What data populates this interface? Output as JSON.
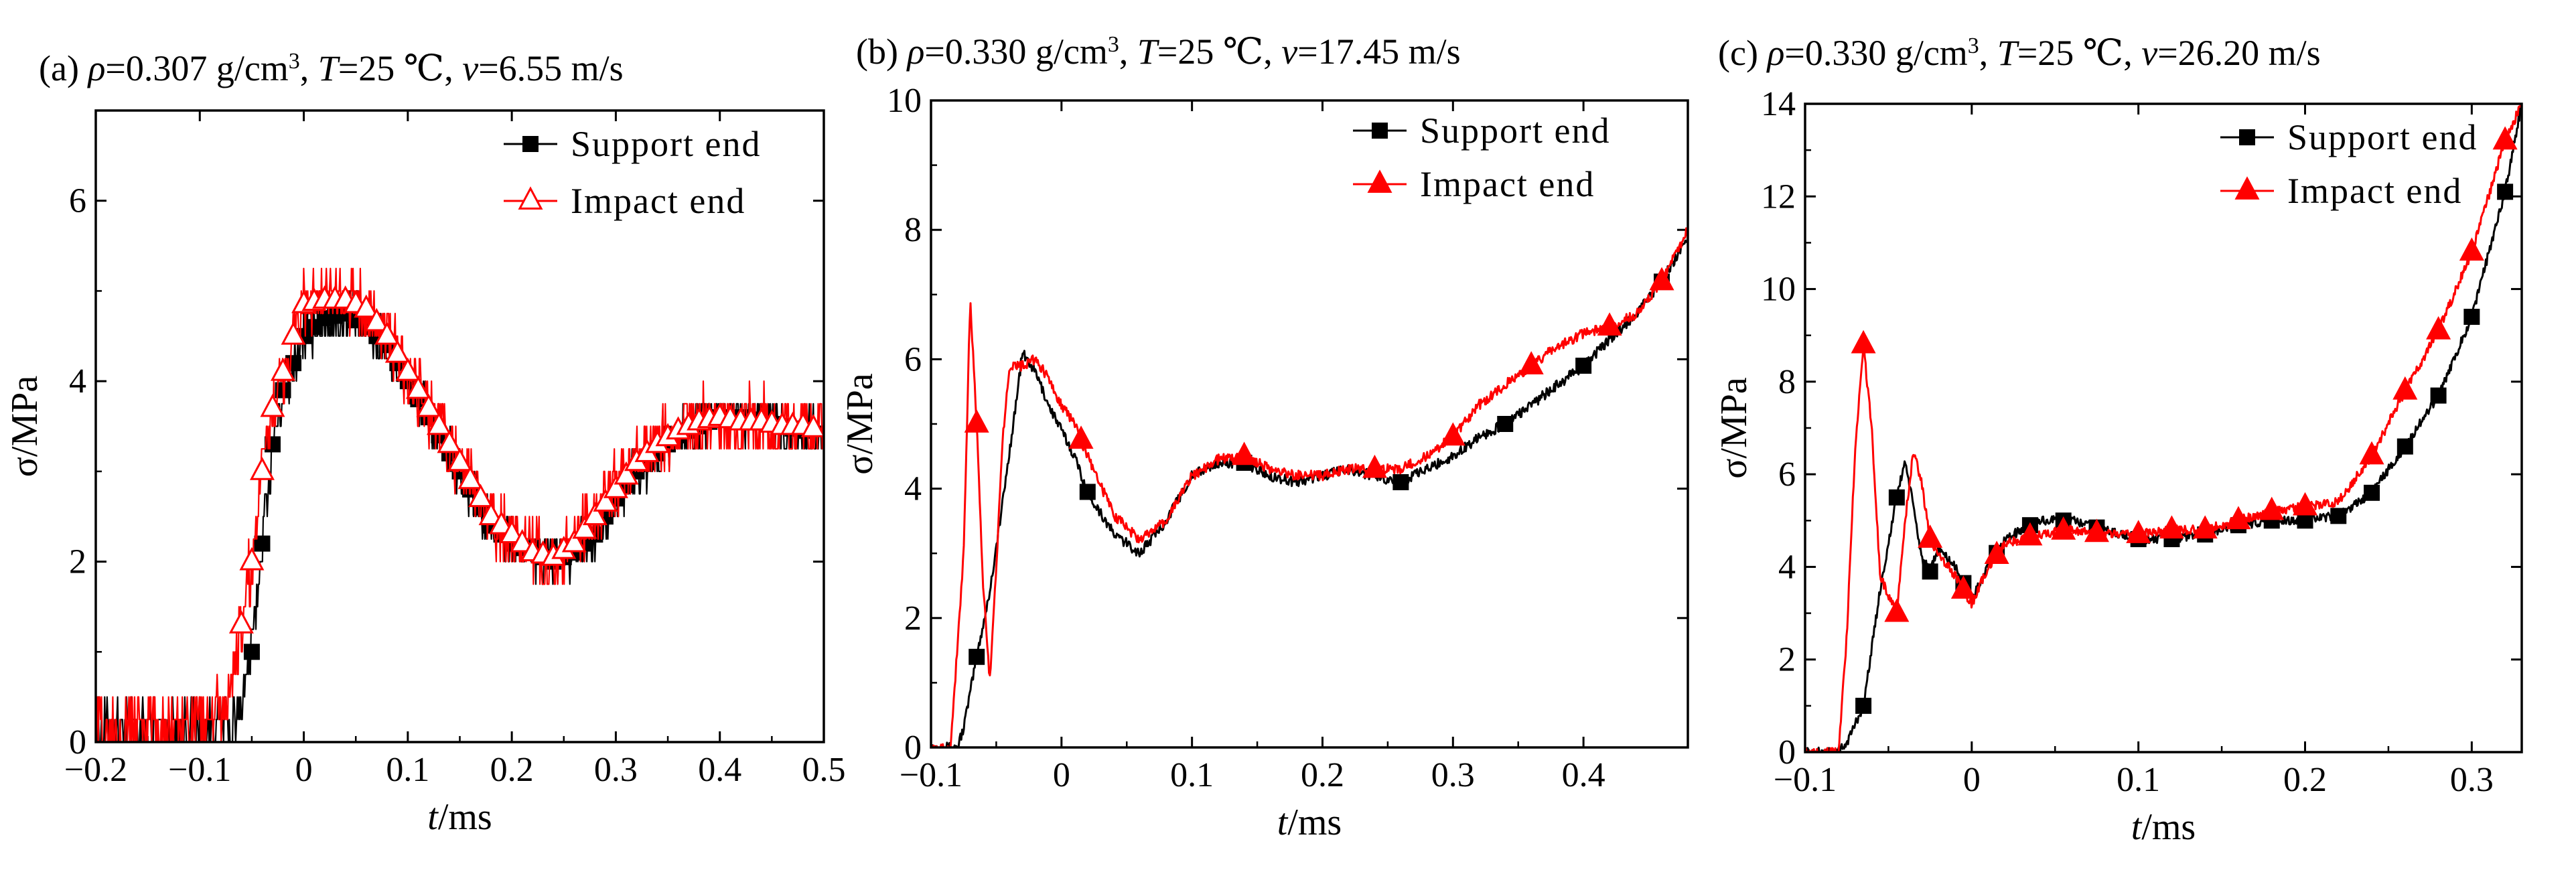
{
  "figure": {
    "colors": {
      "support": "#000000",
      "impact": "#ff0000",
      "frame": "#000000",
      "background": "#ffffff"
    },
    "icons": {
      "support": "filled-square-marker",
      "impact_a": "open-triangle-marker",
      "impact_bc": "filled-triangle-marker"
    }
  },
  "chart_data": [
    {
      "type": "line",
      "panel": "a",
      "title": "(a) ρ=0.307 g/cm³, T=25 ℃, v=6.55 m/s",
      "title_parts": [
        "(a) ",
        "ρ",
        "=0.307 g/cm",
        "3",
        ", ",
        "T",
        "=25 ℃, ",
        "v",
        "=6.55 m/s"
      ],
      "xlabel": "t/ms",
      "ylabel": "σ/MPa",
      "xlim": [
        -0.2,
        0.5
      ],
      "ylim": [
        0,
        7
      ],
      "xticks": [
        -0.2,
        -0.1,
        0,
        0.1,
        0.2,
        0.3,
        0.4,
        0.5
      ],
      "xtick_labels": [
        "−0.2",
        "−0.1",
        "0",
        "0.1",
        "0.2",
        "0.3",
        "0.4",
        "0.5"
      ],
      "yticks": [
        0,
        2,
        4,
        6
      ],
      "ytick_labels": [
        "0",
        "2",
        "4",
        "6"
      ],
      "legend": "top-right",
      "noise": 0.35,
      "series": [
        {
          "name": "Support end",
          "color": "#000000",
          "marker": "square",
          "filled": true,
          "stack": 0,
          "x": [
            -0.2,
            -0.1,
            -0.065,
            -0.05,
            -0.04,
            -0.03,
            -0.02,
            -0.01,
            0,
            0.02,
            0.04,
            0.06,
            0.08,
            0.1,
            0.12,
            0.14,
            0.16,
            0.18,
            0.2,
            0.22,
            0.24,
            0.26,
            0.28,
            0.3,
            0.32,
            0.34,
            0.36,
            0.38,
            0.4,
            0.42,
            0.44,
            0.46,
            0.48,
            0.5
          ],
          "y": [
            0.15,
            0.2,
            0.2,
            1.0,
            2.2,
            3.3,
            3.9,
            4.2,
            4.5,
            4.7,
            4.75,
            4.6,
            4.4,
            4.0,
            3.6,
            3.2,
            2.8,
            2.4,
            2.2,
            2.1,
            2.0,
            2.1,
            2.3,
            2.7,
            3.0,
            3.2,
            3.4,
            3.5,
            3.6,
            3.6,
            3.55,
            3.5,
            3.45,
            3.4
          ],
          "marker_x": [
            -0.05,
            -0.04,
            -0.03,
            -0.02,
            -0.01,
            0,
            0.01,
            0.02,
            0.03,
            0.04,
            0.05,
            0.06,
            0.07,
            0.08,
            0.09,
            0.1,
            0.11,
            0.12,
            0.13,
            0.14,
            0.15,
            0.16,
            0.17,
            0.18,
            0.19,
            0.2,
            0.21,
            0.22,
            0.23,
            0.24,
            0.25,
            0.26,
            0.27,
            0.28,
            0.29,
            0.3,
            0.31,
            0.32,
            0.33,
            0.34,
            0.35,
            0.36,
            0.37,
            0.38,
            0.39,
            0.4,
            0.41,
            0.42,
            0.43,
            0.44,
            0.45,
            0.46,
            0.47,
            0.48
          ]
        },
        {
          "name": "Impact end",
          "color": "#ff0000",
          "marker": "triangle",
          "filled": false,
          "stack": 1,
          "x": [
            -0.2,
            -0.1,
            -0.075,
            -0.06,
            -0.05,
            -0.04,
            -0.03,
            -0.02,
            -0.01,
            0,
            0.02,
            0.04,
            0.06,
            0.08,
            0.1,
            0.12,
            0.14,
            0.16,
            0.18,
            0.2,
            0.22,
            0.24,
            0.26,
            0.28,
            0.3,
            0.32,
            0.34,
            0.36,
            0.38,
            0.4,
            0.42,
            0.44,
            0.46,
            0.48,
            0.5
          ],
          "y": [
            0.2,
            0.25,
            0.3,
            1.3,
            2.0,
            3.0,
            3.7,
            4.1,
            4.5,
            4.85,
            4.9,
            4.9,
            4.8,
            4.5,
            4.1,
            3.7,
            3.3,
            2.9,
            2.5,
            2.3,
            2.1,
            2.05,
            2.2,
            2.5,
            2.8,
            3.1,
            3.3,
            3.45,
            3.55,
            3.6,
            3.55,
            3.55,
            3.5,
            3.5,
            3.45
          ],
          "marker_x": [
            -0.06,
            -0.05,
            -0.04,
            -0.03,
            -0.02,
            -0.01,
            0,
            0.01,
            0.02,
            0.03,
            0.04,
            0.05,
            0.06,
            0.07,
            0.08,
            0.09,
            0.1,
            0.11,
            0.12,
            0.13,
            0.14,
            0.15,
            0.16,
            0.17,
            0.18,
            0.19,
            0.2,
            0.21,
            0.22,
            0.23,
            0.24,
            0.25,
            0.26,
            0.27,
            0.28,
            0.29,
            0.3,
            0.31,
            0.32,
            0.33,
            0.34,
            0.35,
            0.36,
            0.37,
            0.38,
            0.39,
            0.4,
            0.41,
            0.42,
            0.43,
            0.44,
            0.45,
            0.46,
            0.47,
            0.48,
            0.49
          ]
        }
      ]
    },
    {
      "type": "line",
      "panel": "b",
      "title": "(b) ρ=0.330 g/cm³,   T=25 ℃,  v=17.45 m/s",
      "title_parts": [
        "(b) ",
        "ρ",
        "=0.330 g/cm",
        "3",
        ",   ",
        "T",
        "=25 ℃,  ",
        "v",
        "=17.45 m/s"
      ],
      "xlabel": "t/ms",
      "ylabel": "σ/MPa",
      "xlim": [
        -0.1,
        0.48
      ],
      "ylim": [
        0,
        10
      ],
      "xticks": [
        -0.1,
        0,
        0.1,
        0.2,
        0.3,
        0.4
      ],
      "xtick_labels": [
        "−0.1",
        "0",
        "0.1",
        "0.2",
        "0.3",
        "0.4"
      ],
      "yticks": [
        0,
        2,
        4,
        6,
        8,
        10
      ],
      "ytick_labels": [
        "0",
        "2",
        "4",
        "6",
        "8",
        "10"
      ],
      "legend": "top-right",
      "noise": 0.08,
      "series": [
        {
          "name": "Support end",
          "color": "#000000",
          "marker": "square",
          "filled": true,
          "stack": 0,
          "x": [
            -0.1,
            -0.08,
            -0.075,
            -0.065,
            -0.055,
            -0.045,
            -0.035,
            -0.03,
            -0.02,
            -0.01,
            0,
            0.01,
            0.02,
            0.04,
            0.06,
            0.08,
            0.1,
            0.12,
            0.14,
            0.16,
            0.18,
            0.2,
            0.22,
            0.24,
            0.26,
            0.28,
            0.3,
            0.32,
            0.34,
            0.36,
            0.38,
            0.4,
            0.42,
            0.44,
            0.46,
            0.48
          ],
          "y": [
            0,
            0,
            0.3,
            1.4,
            2.4,
            3.8,
            5.3,
            6.1,
            5.8,
            5.3,
            4.9,
            4.5,
            3.95,
            3.3,
            3.0,
            3.5,
            4.2,
            4.4,
            4.4,
            4.2,
            4.1,
            4.2,
            4.3,
            4.2,
            4.1,
            4.3,
            4.5,
            4.8,
            5.0,
            5.3,
            5.6,
            5.9,
            6.3,
            6.7,
            7.2,
            7.9
          ],
          "marker_x": [
            -0.065,
            0.02,
            0.14,
            0.26,
            0.34,
            0.4,
            0.46
          ]
        },
        {
          "name": "Impact end",
          "color": "#ff0000",
          "marker": "triangle",
          "filled": true,
          "stack": 0,
          "x": [
            -0.1,
            -0.085,
            -0.075,
            -0.07,
            -0.065,
            -0.06,
            -0.055,
            -0.05,
            -0.045,
            -0.04,
            -0.03,
            -0.02,
            -0.01,
            0,
            0.01,
            0.02,
            0.04,
            0.06,
            0.08,
            0.1,
            0.12,
            0.14,
            0.16,
            0.18,
            0.2,
            0.22,
            0.24,
            0.26,
            0.28,
            0.3,
            0.32,
            0.34,
            0.36,
            0.38,
            0.4,
            0.42,
            0.44,
            0.46,
            0.48
          ],
          "y": [
            0,
            0,
            3.0,
            6.9,
            5.0,
            2.5,
            1.0,
            2.8,
            4.8,
            5.9,
            5.9,
            6.0,
            5.7,
            5.3,
            5.0,
            4.5,
            3.6,
            3.2,
            3.5,
            4.2,
            4.45,
            4.5,
            4.3,
            4.2,
            4.2,
            4.3,
            4.3,
            4.3,
            4.5,
            4.8,
            5.3,
            5.6,
            5.9,
            6.2,
            6.4,
            6.5,
            6.7,
            7.2,
            8.0
          ],
          "marker_x": [
            -0.065,
            0.015,
            0.14,
            0.24,
            0.3,
            0.36,
            0.42,
            0.46
          ]
        }
      ]
    },
    {
      "type": "line",
      "panel": "c",
      "title": "(c) ρ=0.330 g/cm³,   T=25 ℃,  v=26.20 m/s",
      "title_parts": [
        "(c) ",
        "ρ",
        "=0.330 g/cm",
        "3",
        ",   ",
        "T",
        "=25 ℃,  ",
        "v",
        "=26.20 m/s"
      ],
      "xlabel": "t/ms",
      "ylabel": "σ/MPa",
      "xlim": [
        -0.1,
        0.33
      ],
      "ylim": [
        0,
        14
      ],
      "xticks": [
        -0.1,
        0,
        0.1,
        0.2,
        0.3
      ],
      "xtick_labels": [
        "−0.1",
        "0",
        "0.1",
        "0.2",
        "0.3"
      ],
      "yticks": [
        0,
        2,
        4,
        6,
        8,
        10,
        12,
        14
      ],
      "ytick_labels": [
        "0",
        "2",
        "4",
        "6",
        "8",
        "10",
        "12",
        "14"
      ],
      "legend": "top-right",
      "noise": 0.1,
      "series": [
        {
          "name": "Support end",
          "color": "#000000",
          "marker": "square",
          "filled": true,
          "stack": 0,
          "x": [
            -0.1,
            -0.08,
            -0.075,
            -0.065,
            -0.055,
            -0.045,
            -0.04,
            -0.035,
            -0.03,
            -0.025,
            -0.02,
            -0.01,
            0,
            0.01,
            0.02,
            0.04,
            0.06,
            0.08,
            0.1,
            0.12,
            0.14,
            0.16,
            0.18,
            0.2,
            0.22,
            0.24,
            0.26,
            0.28,
            0.3,
            0.32,
            0.33
          ],
          "y": [
            0,
            0,
            0.2,
            1.0,
            3.5,
            5.5,
            6.3,
            5.3,
            4.2,
            3.9,
            4.4,
            4.0,
            3.3,
            4.0,
            4.6,
            5.0,
            5.0,
            4.8,
            4.6,
            4.6,
            4.7,
            4.9,
            5.0,
            5.0,
            5.1,
            5.6,
            6.6,
            7.7,
            9.4,
            12.1,
            14.0
          ],
          "marker_x": [
            -0.065,
            -0.045,
            -0.025,
            -0.005,
            0.015,
            0.035,
            0.055,
            0.075,
            0.1,
            0.12,
            0.14,
            0.16,
            0.18,
            0.2,
            0.22,
            0.24,
            0.26,
            0.28,
            0.3,
            0.32
          ]
        },
        {
          "name": "Impact end",
          "color": "#ff0000",
          "marker": "triangle",
          "filled": true,
          "stack": 0,
          "x": [
            -0.1,
            -0.08,
            -0.075,
            -0.07,
            -0.065,
            -0.06,
            -0.055,
            -0.045,
            -0.04,
            -0.035,
            -0.03,
            -0.025,
            -0.02,
            -0.01,
            0,
            0.01,
            0.02,
            0.04,
            0.06,
            0.08,
            0.1,
            0.12,
            0.14,
            0.16,
            0.18,
            0.2,
            0.22,
            0.24,
            0.26,
            0.28,
            0.3,
            0.32,
            0.33
          ],
          "y": [
            0,
            0,
            2.5,
            6.5,
            8.8,
            7.0,
            3.8,
            3.0,
            5.0,
            6.5,
            5.8,
            4.6,
            4.3,
            3.8,
            3.2,
            4.0,
            4.5,
            4.7,
            4.8,
            4.7,
            4.7,
            4.8,
            4.8,
            5.0,
            5.2,
            5.3,
            5.4,
            6.4,
            7.8,
            9.1,
            10.8,
            13.2,
            14.0
          ],
          "marker_x": [
            -0.065,
            -0.045,
            -0.025,
            -0.005,
            0.015,
            0.035,
            0.055,
            0.075,
            0.1,
            0.12,
            0.14,
            0.16,
            0.18,
            0.2,
            0.24,
            0.26,
            0.28,
            0.3,
            0.32
          ]
        }
      ]
    }
  ]
}
